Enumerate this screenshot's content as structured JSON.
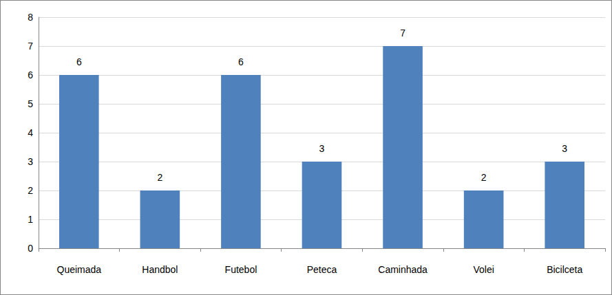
{
  "chart_data": {
    "type": "bar",
    "categories": [
      "Queimada",
      "Handbol",
      "Futebol",
      "Peteca",
      "Caminhada",
      "Volei",
      "Bicilceta"
    ],
    "values": [
      6,
      2,
      6,
      3,
      7,
      2,
      3
    ],
    "color": "#4f81bd",
    "ylim": [
      0,
      8
    ],
    "yticks": [
      0,
      1,
      2,
      3,
      4,
      5,
      6,
      7,
      8
    ],
    "grid": true,
    "data_labels": true
  }
}
